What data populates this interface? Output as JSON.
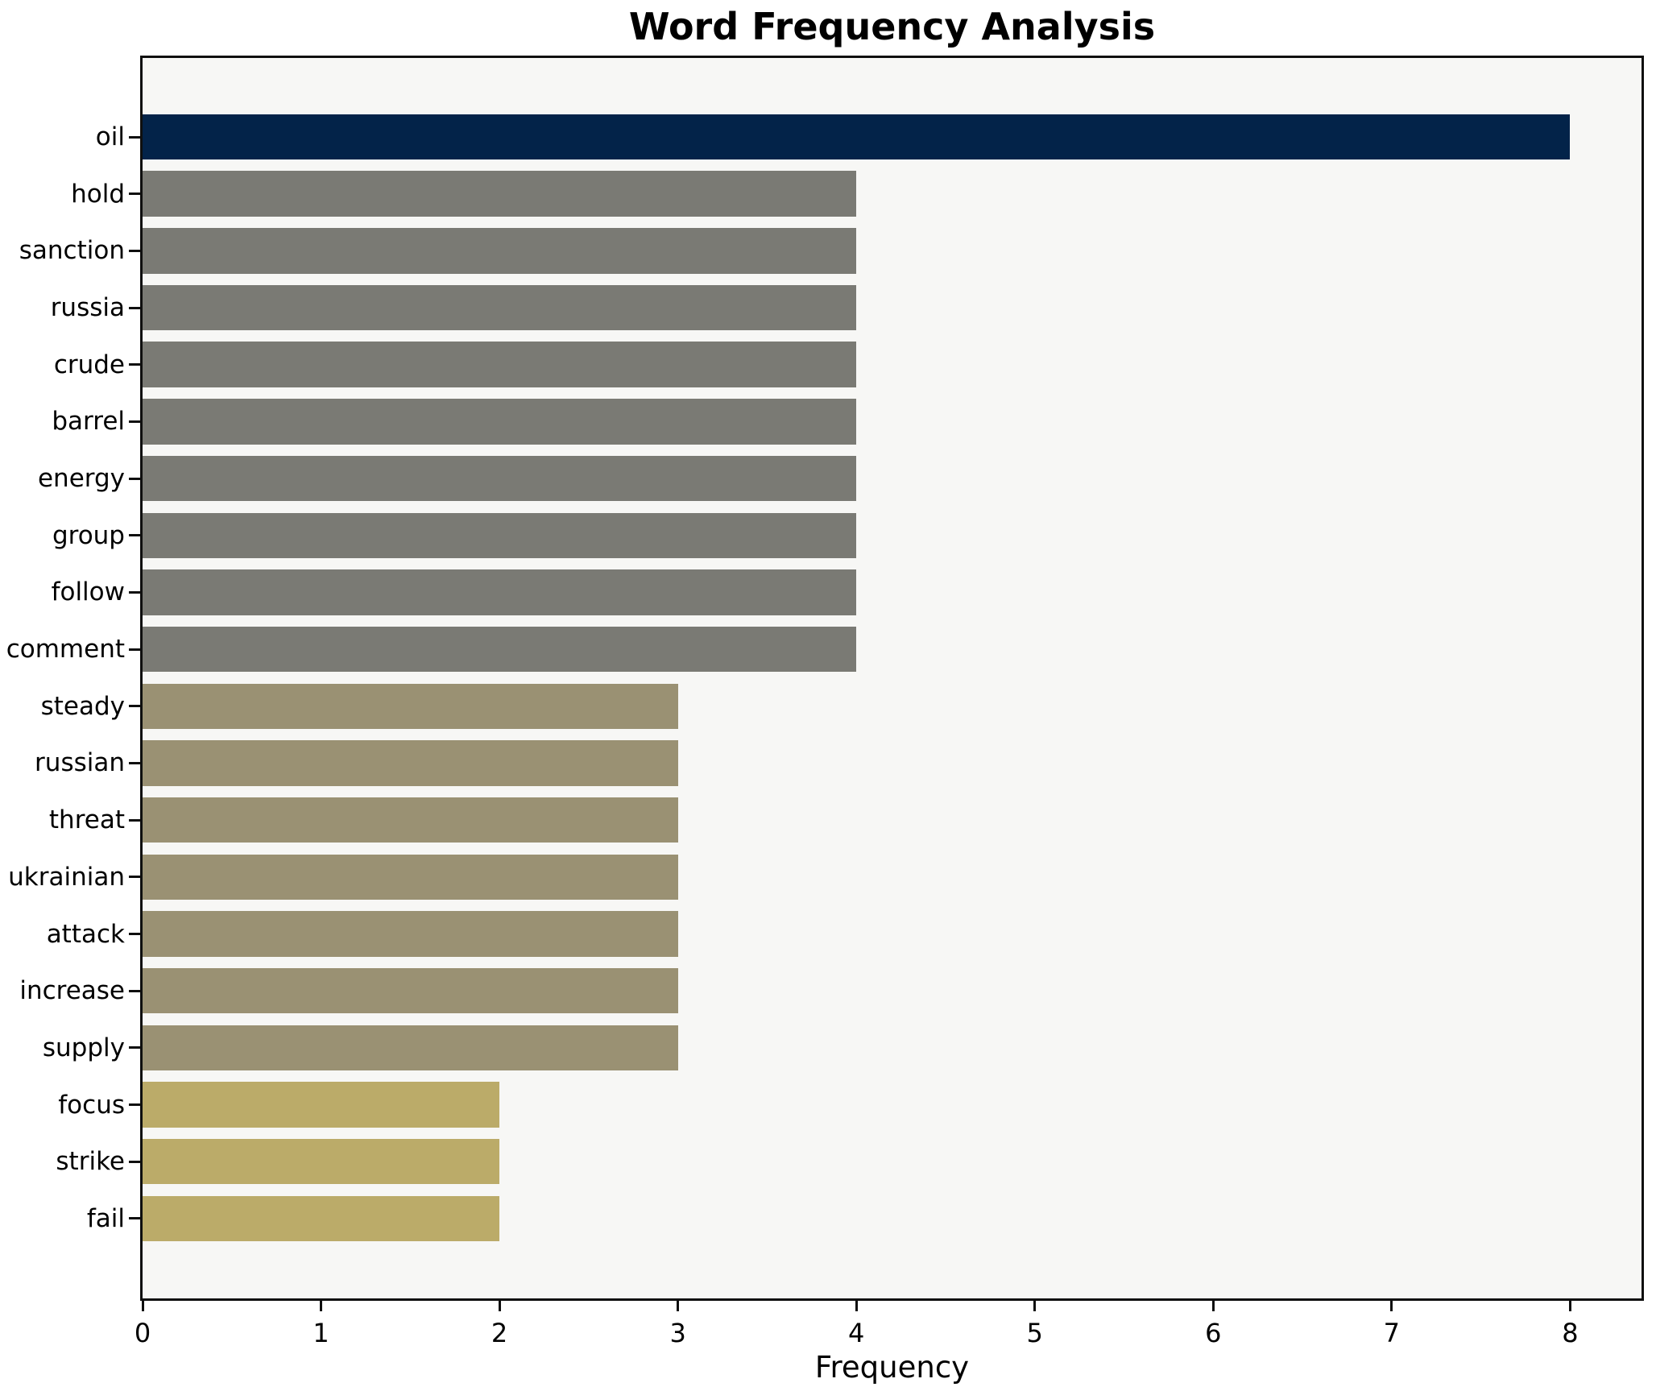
{
  "title": "Word Frequency Analysis",
  "chart_data": {
    "type": "bar",
    "orientation": "horizontal",
    "title": "Word Frequency Analysis",
    "xlabel": "Frequency",
    "ylabel": "",
    "categories": [
      "oil",
      "hold",
      "sanction",
      "russia",
      "crude",
      "barrel",
      "energy",
      "group",
      "follow",
      "comment",
      "steady",
      "russian",
      "threat",
      "ukrainian",
      "attack",
      "increase",
      "supply",
      "focus",
      "strike",
      "fail"
    ],
    "values": [
      8,
      4,
      4,
      4,
      4,
      4,
      4,
      4,
      4,
      4,
      3,
      3,
      3,
      3,
      3,
      3,
      3,
      2,
      2,
      2
    ],
    "bar_colors": [
      "#032349",
      "#7a7a74",
      "#7a7a74",
      "#7a7a74",
      "#7a7a74",
      "#7a7a74",
      "#7a7a74",
      "#7a7a74",
      "#7a7a74",
      "#7a7a74",
      "#9a9173",
      "#9a9173",
      "#9a9173",
      "#9a9173",
      "#9a9173",
      "#9a9173",
      "#9a9173",
      "#bbab69",
      "#bbab69",
      "#bbab69"
    ],
    "xlim": [
      0,
      8.4
    ],
    "x_ticks": [
      0,
      1,
      2,
      3,
      4,
      5,
      6,
      7,
      8
    ],
    "grid": false,
    "legend": null,
    "plot_bg": "#f7f7f5",
    "page_bg": "#ffffff",
    "spine_color": "#0f0f0f"
  }
}
